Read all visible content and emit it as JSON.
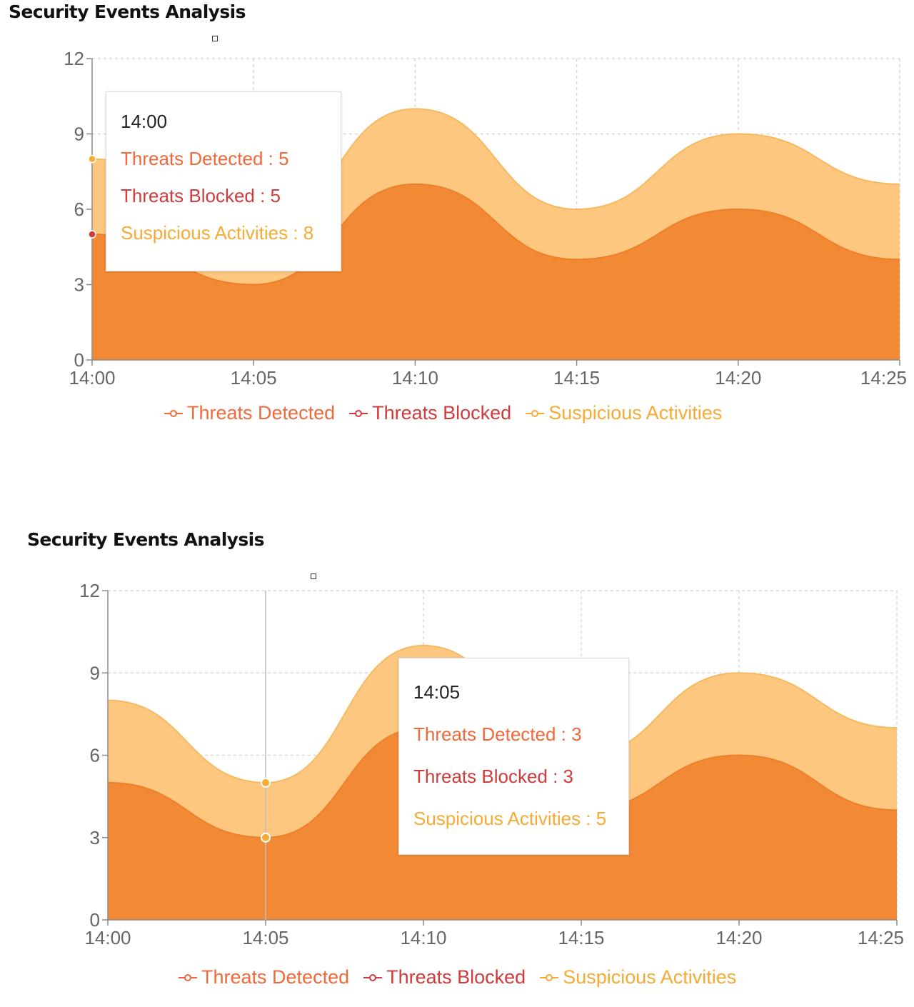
{
  "colors": {
    "threats_detected": "#f0693a",
    "threats_blocked": "#d03b3b",
    "suspicious_activities": "#f5ab34",
    "area_lower": "#f28a35",
    "area_upper": "#fdc77f",
    "grid": "#d8d8d8",
    "axis": "#8a8a8a",
    "tick_text": "#666666"
  },
  "panels": [
    {
      "title": "Security Events Analysis",
      "tooltip": {
        "title": "14:00",
        "rows": [
          {
            "label": "Threats Detected",
            "value": 5,
            "text": "Threats Detected : 5"
          },
          {
            "label": "Threats Blocked",
            "value": 5,
            "text": "Threats Blocked : 5"
          },
          {
            "label": "Suspicious Activities",
            "value": 8,
            "text": "Suspicious Activities : 8"
          }
        ]
      },
      "legend": [
        "Threats Detected",
        "Threats Blocked",
        "Suspicious Activities"
      ]
    },
    {
      "title": "Security Events Analysis",
      "tooltip": {
        "title": "14:05",
        "rows": [
          {
            "label": "Threats Detected",
            "value": 3,
            "text": "Threats Detected : 3"
          },
          {
            "label": "Threats Blocked",
            "value": 3,
            "text": "Threats Blocked : 3"
          },
          {
            "label": "Suspicious Activities",
            "value": 5,
            "text": "Suspicious Activities : 5"
          }
        ]
      },
      "legend": [
        "Threats Detected",
        "Threats Blocked",
        "Suspicious Activities"
      ]
    }
  ],
  "chart_data": [
    {
      "type": "area",
      "title": "Security Events Analysis",
      "categories": [
        "14:00",
        "14:05",
        "14:10",
        "14:15",
        "14:20",
        "14:25"
      ],
      "ylim": [
        0,
        12
      ],
      "yticks": [
        0,
        3,
        6,
        9,
        12
      ],
      "grid": true,
      "legend_position": "bottom",
      "active_category": "14:00",
      "series": [
        {
          "name": "Threats Detected",
          "values": [
            5,
            3,
            7,
            4,
            6,
            4
          ]
        },
        {
          "name": "Threats Blocked",
          "values": [
            5,
            3,
            7,
            4,
            6,
            4
          ]
        },
        {
          "name": "Suspicious Activities",
          "values": [
            8,
            5,
            10,
            6,
            9,
            7
          ]
        }
      ]
    },
    {
      "type": "area",
      "title": "Security Events Analysis",
      "categories": [
        "14:00",
        "14:05",
        "14:10",
        "14:15",
        "14:20",
        "14:25"
      ],
      "ylim": [
        0,
        12
      ],
      "yticks": [
        0,
        3,
        6,
        9,
        12
      ],
      "grid": true,
      "legend_position": "bottom",
      "active_category": "14:05",
      "series": [
        {
          "name": "Threats Detected",
          "values": [
            5,
            3,
            7,
            4,
            6,
            4
          ]
        },
        {
          "name": "Threats Blocked",
          "values": [
            5,
            3,
            7,
            4,
            6,
            4
          ]
        },
        {
          "name": "Suspicious Activities",
          "values": [
            8,
            5,
            10,
            6,
            9,
            7
          ]
        }
      ]
    }
  ]
}
